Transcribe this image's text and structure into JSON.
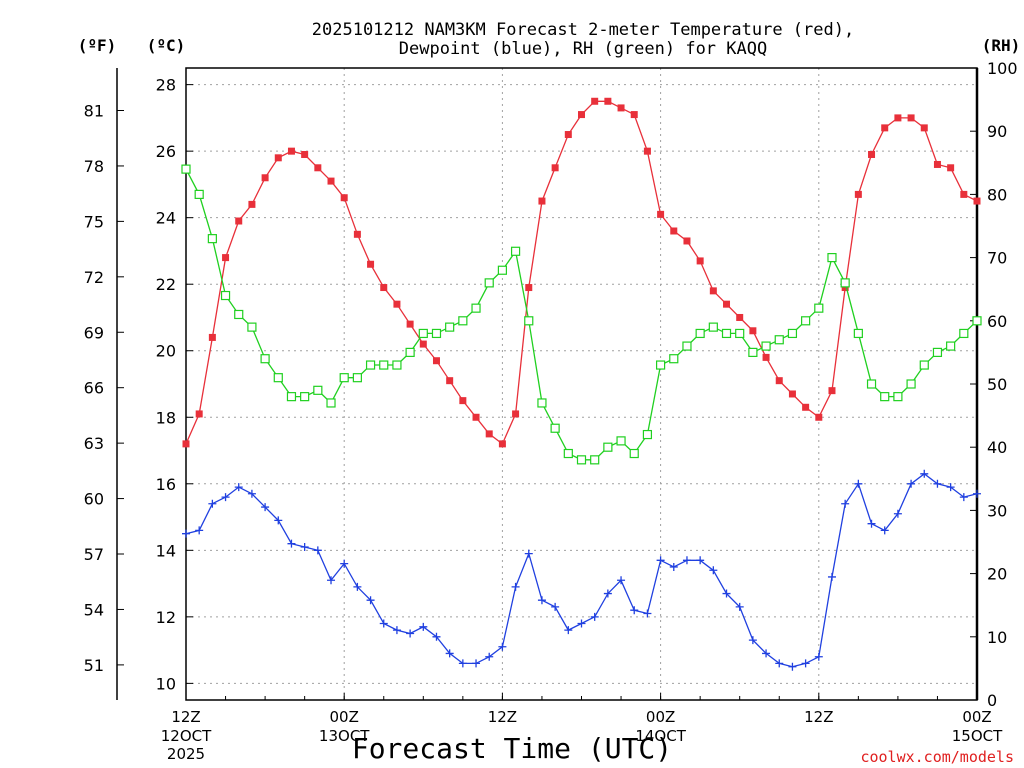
{
  "chart_data": {
    "type": "line",
    "title_line1": "2025101212 NAM3KM Forecast 2-meter Temperature (red),",
    "title_line2": "Dewpoint (blue), RH (green) for KAQQ",
    "xlabel": "Forecast Time (UTC)",
    "credit": "coolwx.com/models",
    "left_unit_f": "(ºF)",
    "left_unit_c": "(ºC)",
    "right_unit": "(RH)",
    "celsius_ylim": [
      9.5,
      28.5
    ],
    "rh_ylim": [
      0,
      100
    ],
    "celsius_ticks": [
      "10",
      "12",
      "14",
      "16",
      "18",
      "20",
      "22",
      "24",
      "26",
      "28"
    ],
    "fahrenheit_ticks": [
      "51",
      "54",
      "57",
      "60",
      "63",
      "66",
      "69",
      "72",
      "75",
      "78",
      "81"
    ],
    "rh_ticks": [
      "0",
      "10",
      "20",
      "30",
      "40",
      "50",
      "60",
      "70",
      "80",
      "90",
      "100"
    ],
    "x_hours_range": [
      0,
      60
    ],
    "x_ticks": [
      {
        "hour": 0,
        "time": "12Z",
        "date": "12OCT",
        "year": "2025"
      },
      {
        "hour": 12,
        "time": "00Z",
        "date": "13OCT",
        "year": ""
      },
      {
        "hour": 24,
        "time": "12Z",
        "date": "",
        "year": ""
      },
      {
        "hour": 36,
        "time": "00Z",
        "date": "14OCT",
        "year": ""
      },
      {
        "hour": 48,
        "time": "12Z",
        "date": "",
        "year": ""
      },
      {
        "hour": 60,
        "time": "00Z",
        "date": "15OCT",
        "year": ""
      }
    ],
    "series": [
      {
        "name": "2-meter Temperature",
        "units": "C",
        "color": "#e8303a",
        "marker": "filled-square",
        "values": [
          17.2,
          18.1,
          20.4,
          22.8,
          23.9,
          24.4,
          25.2,
          25.8,
          26.0,
          25.9,
          25.5,
          25.1,
          24.6,
          23.5,
          22.6,
          21.9,
          21.4,
          20.8,
          20.2,
          19.7,
          19.1,
          18.5,
          18.0,
          17.5,
          17.2,
          18.1,
          21.9,
          24.5,
          25.5,
          26.5,
          27.1,
          27.5,
          27.5,
          27.3,
          27.1,
          26.0,
          24.1,
          23.6,
          23.3,
          22.7,
          21.8,
          21.4,
          21.0,
          20.6,
          19.8,
          19.1,
          18.7,
          18.3,
          18.0,
          18.8,
          21.9,
          24.7,
          25.9,
          26.7,
          27.0,
          27.0,
          26.7,
          25.6,
          25.5,
          24.7,
          24.5
        ]
      },
      {
        "name": "Dewpoint",
        "units": "C",
        "color": "#2040e0",
        "marker": "plus",
        "values": [
          14.5,
          14.6,
          15.4,
          15.6,
          15.9,
          15.7,
          15.3,
          14.9,
          14.2,
          14.1,
          14.0,
          13.1,
          13.6,
          12.9,
          12.5,
          11.8,
          11.6,
          11.5,
          11.7,
          11.4,
          10.9,
          10.6,
          10.6,
          10.8,
          11.1,
          12.9,
          13.9,
          12.5,
          12.3,
          11.6,
          11.8,
          12.0,
          12.7,
          13.1,
          12.2,
          12.1,
          13.7,
          13.5,
          13.7,
          13.7,
          13.4,
          12.7,
          12.3,
          11.3,
          10.9,
          10.6,
          10.5,
          10.6,
          10.8,
          13.2,
          15.4,
          16.0,
          14.8,
          14.6,
          15.1,
          16.0,
          16.3,
          16.0,
          15.9,
          15.6,
          15.7
        ]
      },
      {
        "name": "RH",
        "units": "%",
        "color": "#20d020",
        "marker": "open-square",
        "values": [
          84,
          80,
          73,
          64,
          61,
          59,
          54,
          51,
          48,
          48,
          49,
          47,
          51,
          51,
          53,
          53,
          53,
          55,
          58,
          58,
          59,
          60,
          62,
          66,
          68,
          71,
          60,
          47,
          43,
          39,
          38,
          38,
          40,
          41,
          39,
          42,
          53,
          54,
          56,
          58,
          59,
          58,
          58,
          55,
          56,
          57,
          58,
          60,
          62,
          70,
          66,
          58,
          50,
          48,
          48,
          50,
          53,
          55,
          56,
          58,
          60
        ]
      }
    ]
  }
}
